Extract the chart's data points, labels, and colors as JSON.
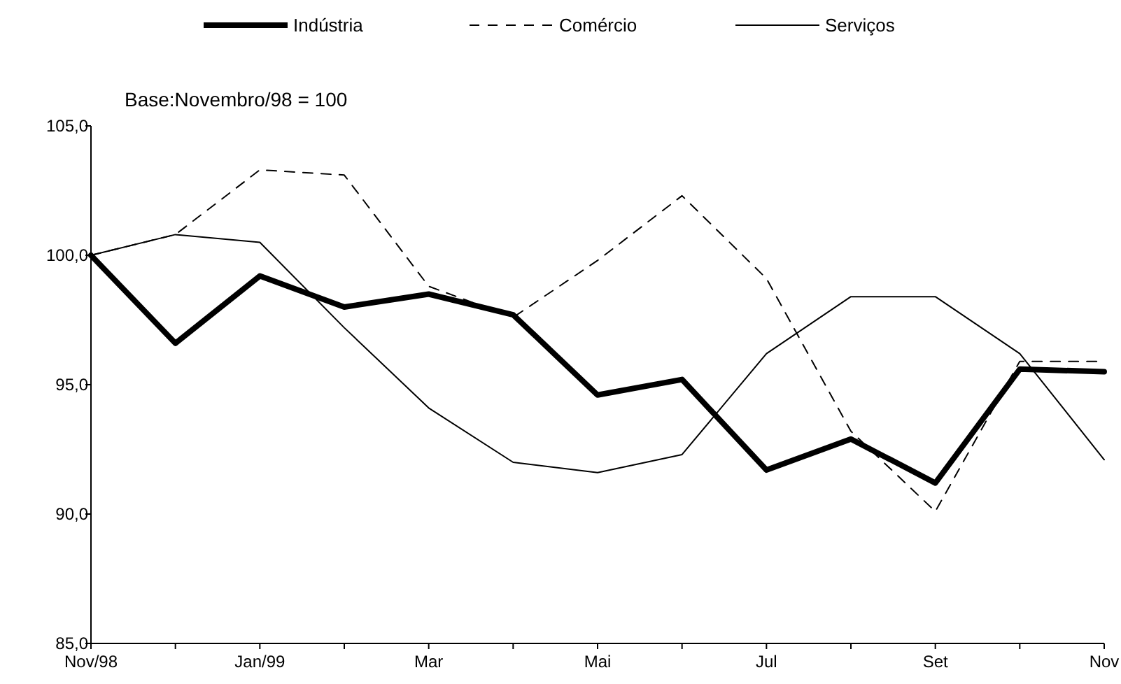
{
  "chart_data": {
    "type": "line",
    "subtitle": "Base:Novembro/98 = 100",
    "categories": [
      "Nov/98",
      null,
      "Jan/99",
      null,
      "Mar",
      null,
      "Mai",
      null,
      "Jul",
      null,
      "Set",
      null,
      "Nov"
    ],
    "series": [
      {
        "name": "Indústria",
        "color": "#000000",
        "line_style": "solid",
        "values": [
          100,
          96.6,
          99.2,
          98.0,
          98.5,
          97.7,
          94.6,
          95.2,
          91.7,
          92.9,
          91.2,
          95.6,
          95.5
        ]
      },
      {
        "name": "Comércio",
        "color": "#000000",
        "line_style": "dashed",
        "values": [
          100,
          100.8,
          103.3,
          103.1,
          98.8,
          97.6,
          99.8,
          102.3,
          99.1,
          93.2,
          90.1,
          95.9,
          95.9
        ]
      },
      {
        "name": "Serviços",
        "color": "#000000",
        "line_style": "solid",
        "values": [
          100,
          100.8,
          100.5,
          97.2,
          94.1,
          92.0,
          91.6,
          92.3,
          96.2,
          98.4,
          98.4,
          96.2,
          92.1
        ]
      }
    ],
    "ylim": [
      85,
      105
    ],
    "yticks": [
      {
        "value": 85,
        "label": "85,0"
      },
      {
        "value": 90,
        "label": "90,0"
      },
      {
        "value": 95,
        "label": "95,0"
      },
      {
        "value": 100,
        "label": "100,0"
      },
      {
        "value": 105,
        "label": "105,0"
      }
    ],
    "grid": false,
    "legend": "top",
    "marker": "none"
  }
}
